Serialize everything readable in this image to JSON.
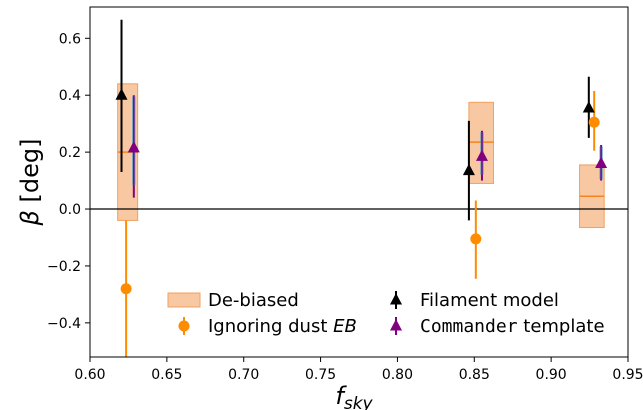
{
  "chart_data": {
    "type": "scatter",
    "title": "",
    "xlabel_main": "f",
    "xlabel_sub": "sky",
    "ylabel_greek": "β",
    "ylabel_rest": " [deg]",
    "xlim": [
      0.6,
      0.95
    ],
    "ylim": [
      -0.52,
      0.71
    ],
    "xticks": [
      0.6,
      0.65,
      0.7,
      0.75,
      0.8,
      0.85,
      0.9,
      0.95
    ],
    "xtick_labels": [
      "0.60",
      "0.65",
      "0.70",
      "0.75",
      "0.80",
      "0.85",
      "0.90",
      "0.95"
    ],
    "yticks": [
      -0.4,
      -0.2,
      0.0,
      0.2,
      0.4,
      0.6
    ],
    "ytick_labels": [
      "−0.4",
      "−0.2",
      "0.0",
      "0.2",
      "0.4",
      "0.6"
    ],
    "zero_line": 0.0,
    "grid": false,
    "legend_position": "lower-center",
    "series": [
      {
        "name": "De-biased",
        "kind": "box",
        "color": "#f5b583",
        "edge": "#f0a060",
        "median_color": "#f5841f",
        "boxes": [
          {
            "x0": 0.618,
            "x1": 0.631,
            "y0": -0.04,
            "y1": 0.44,
            "median": 0.2
          },
          {
            "x0": 0.8465,
            "x1": 0.8625,
            "y0": 0.09,
            "y1": 0.375,
            "median": 0.235
          },
          {
            "x0": 0.9185,
            "x1": 0.9345,
            "y0": -0.065,
            "y1": 0.155,
            "median": 0.045
          }
        ]
      },
      {
        "name": "Ignoring dust EB",
        "kind": "errorbar",
        "marker": "circle",
        "color": "#ff8c00",
        "points": [
          {
            "x": 0.6235,
            "y": -0.28,
            "ylow": -0.52,
            "yhigh": -0.04
          },
          {
            "x": 0.851,
            "y": -0.105,
            "ylow": -0.245,
            "yhigh": 0.03
          },
          {
            "x": 0.928,
            "y": 0.305,
            "ylow": 0.205,
            "yhigh": 0.415
          }
        ]
      },
      {
        "name": "Filament model",
        "kind": "errorbar",
        "marker": "triangle",
        "color": "#000000",
        "points": [
          {
            "x": 0.6205,
            "y": 0.4,
            "ylow": 0.13,
            "yhigh": 0.665
          },
          {
            "x": 0.8465,
            "y": 0.135,
            "ylow": -0.04,
            "yhigh": 0.31
          },
          {
            "x": 0.9245,
            "y": 0.355,
            "ylow": 0.25,
            "yhigh": 0.465
          }
        ]
      },
      {
        "name": "Commander template",
        "kind": "errorbar",
        "marker": "triangle",
        "color": "#800080",
        "inner_color": "#4f8fc0",
        "points": [
          {
            "x": 0.6285,
            "y": 0.215,
            "ylow": 0.04,
            "yhigh": 0.4,
            "inner_low": 0.085,
            "inner_high": 0.395
          },
          {
            "x": 0.855,
            "y": 0.185,
            "ylow": 0.1,
            "yhigh": 0.275,
            "inner_low": 0.12,
            "inner_high": 0.27
          },
          {
            "x": 0.9325,
            "y": 0.16,
            "ylow": 0.1,
            "yhigh": 0.225,
            "inner_low": 0.105,
            "inner_high": 0.22
          }
        ]
      }
    ],
    "legend": [
      {
        "label": "De-biased",
        "series": 0,
        "col": 0,
        "row": 0
      },
      {
        "label": "Ignoring dust ",
        "label_italic": "EB",
        "series": 1,
        "col": 0,
        "row": 1
      },
      {
        "label": "Filament model",
        "series": 2,
        "col": 1,
        "row": 0
      },
      {
        "label_mono": "Commander",
        "label": " template",
        "series": 3,
        "col": 1,
        "row": 1
      }
    ]
  }
}
